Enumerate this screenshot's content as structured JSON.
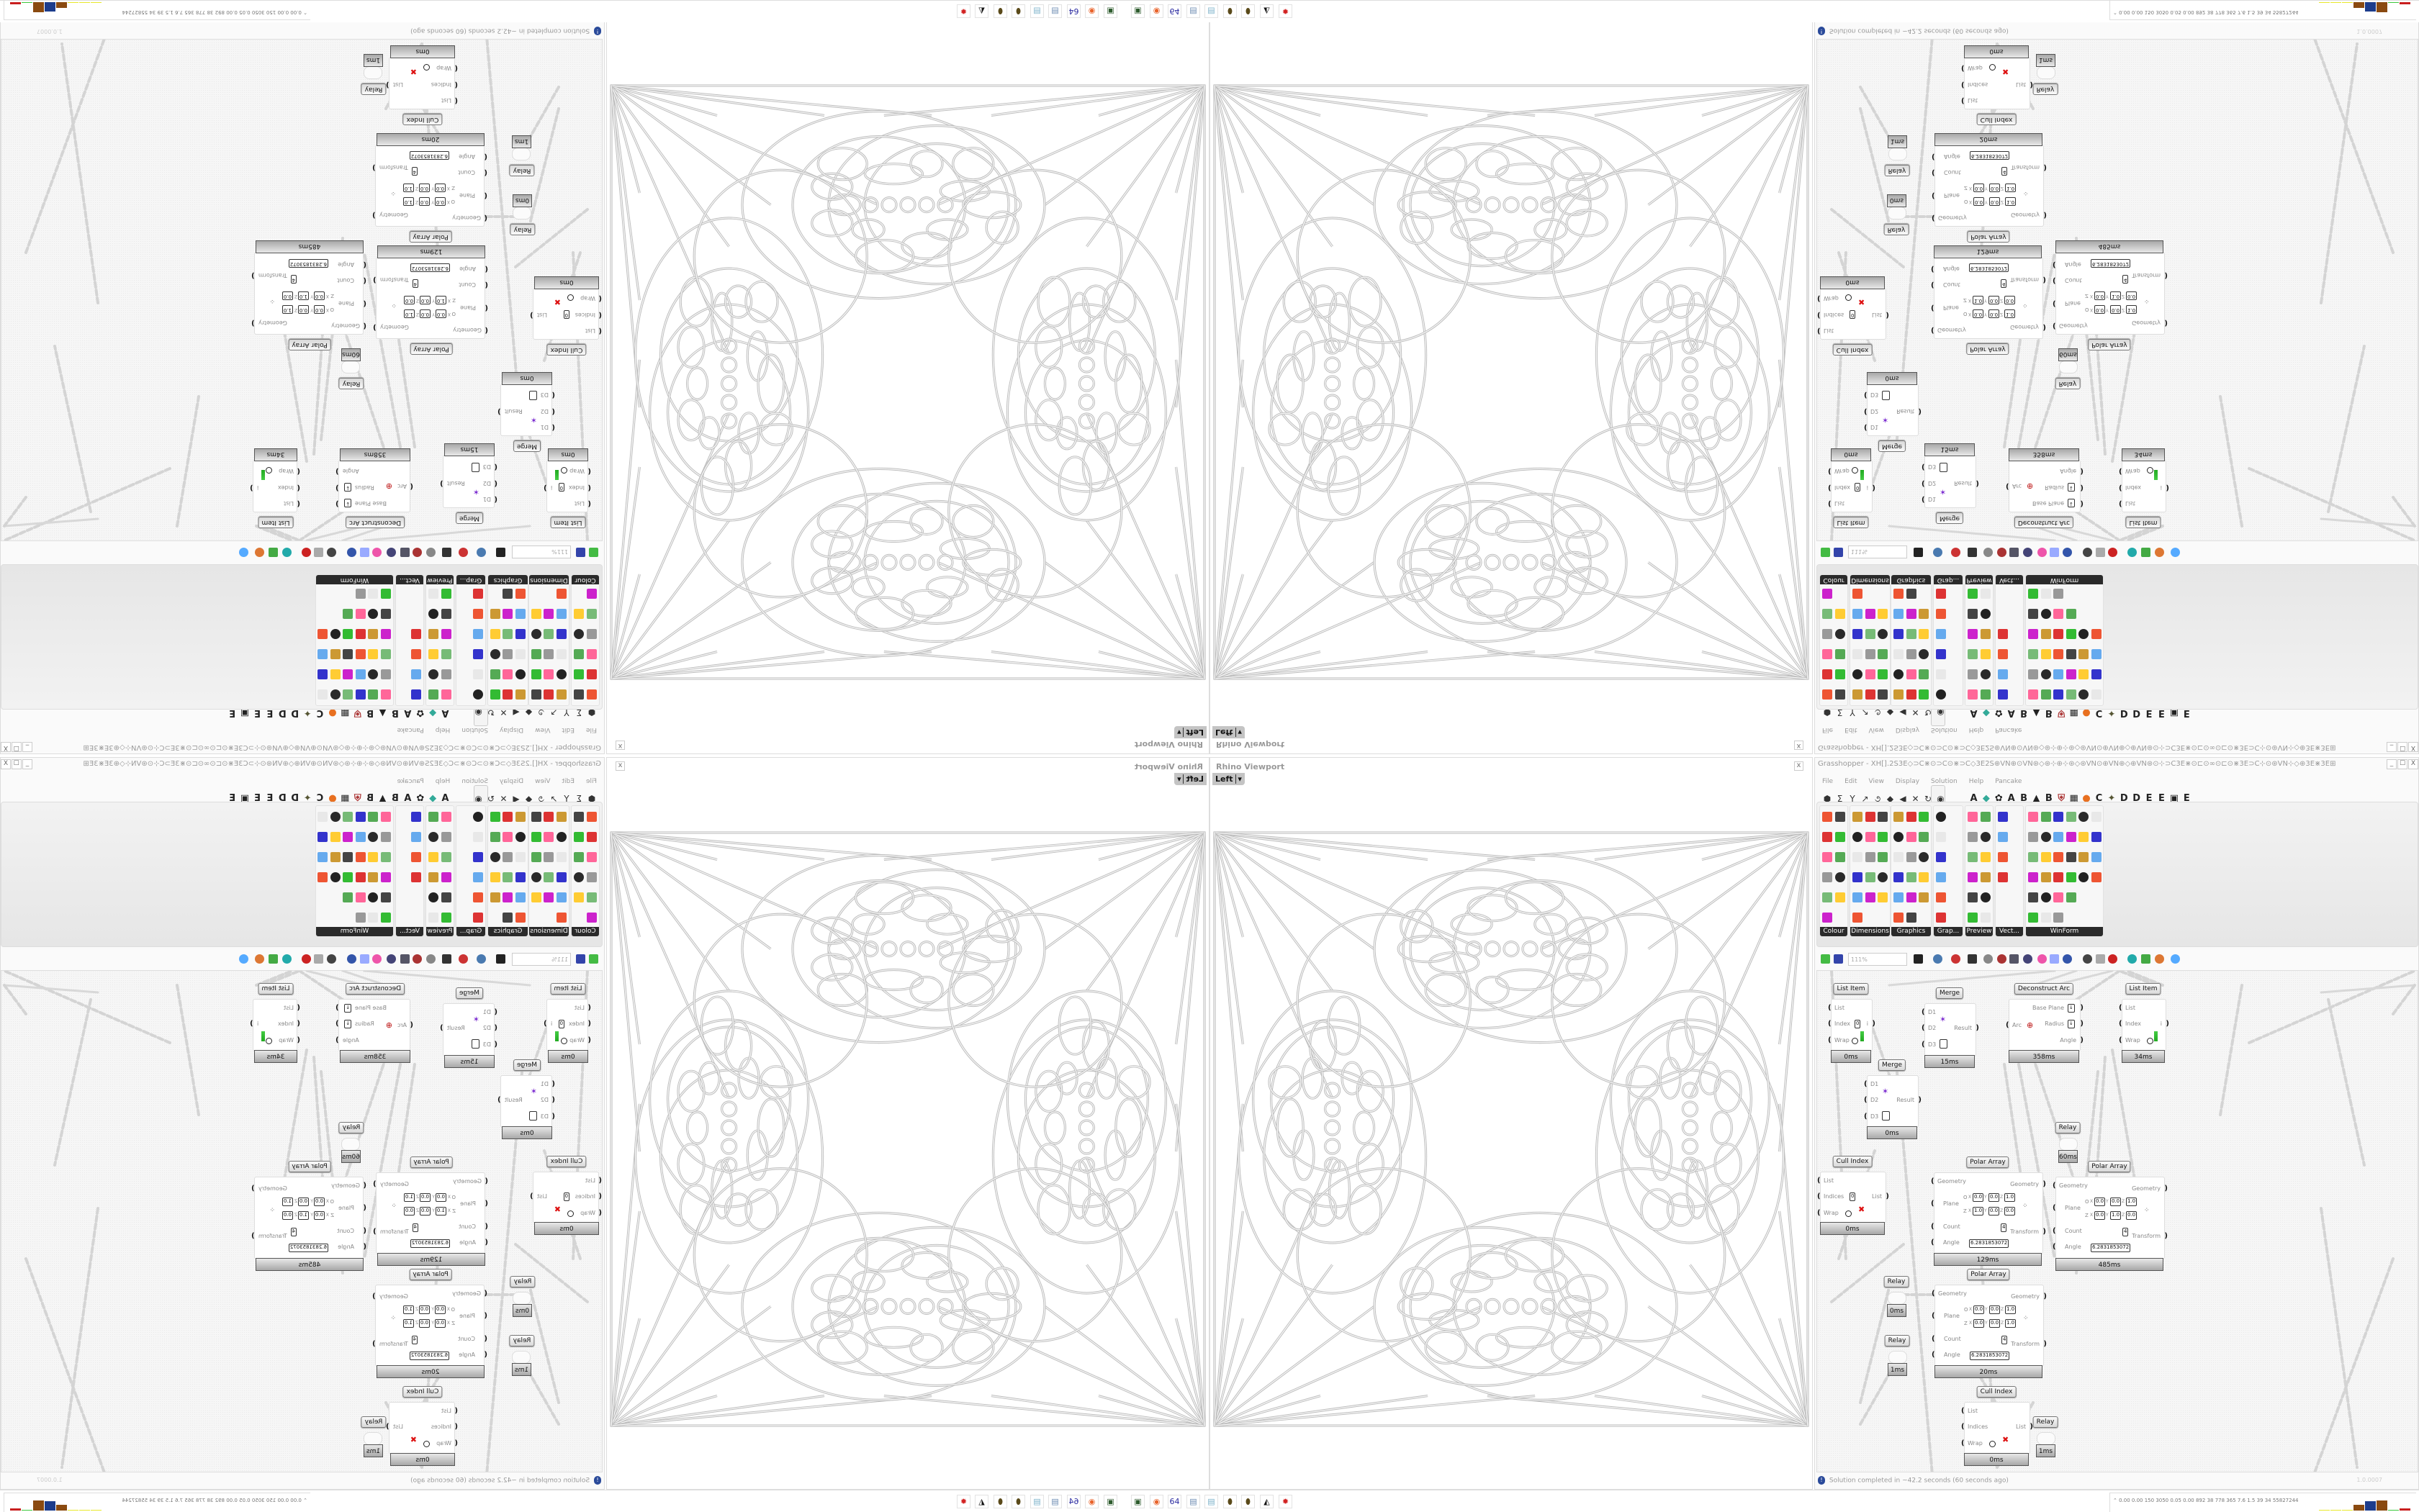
{
  "rhino": {
    "title": "Rhino Viewport",
    "view": "Left",
    "view_arrow": "▾",
    "close": "x"
  },
  "gh": {
    "title": "Grasshopper - XH[].2S3E◇⊃C⋇⊙⊃C⊙⋇⊃C◇3E2S⊕VN⊕⊙VN⊛◇⊛⊹⊕⊹⊛◇⊛VN⊙⊕VN⊕◇⊕VN⊛⊙⊹⊃C3E⋇⊙⊏⊙∞⊙⊏⊙⋇3E⊃C⊹⊙⊛VN⊹◇⊕3E⋇3E⊞⊹2S⊹⊞3E⋇3E⊕◇⊹⋇⊏3E⊞⊹⊹⊃C...",
    "window_buttons": [
      "_",
      "☐",
      "X"
    ],
    "menu": [
      "File",
      "Edit",
      "View",
      "Display",
      "Solution",
      "Help",
      "Pancake"
    ],
    "tab_icons": [
      "hexagon-icon",
      "sigma-icon",
      "vector-icon",
      "arrow-icon",
      "curve-icon",
      "surface-icon",
      "mesh-icon",
      "intersect-icon",
      "transform-icon",
      "display-eye-icon"
    ],
    "tab_icon_glyphs": [
      "⬢",
      "Σ",
      "Y",
      "↗",
      "૭",
      "◆",
      "◀",
      "✕",
      "↻",
      "◉"
    ],
    "tab_letters": [
      "A",
      "◆",
      "✿",
      "A",
      "B",
      "▲",
      "B",
      "⛨",
      "▦",
      "●",
      "C",
      "✦",
      "D",
      "D",
      "E",
      "E",
      "▣",
      "E"
    ],
    "ribbon_panels": [
      "Colour",
      "Dimensions",
      "Graphics",
      "Grap...",
      "Preview",
      "Vect...",
      "WinForm"
    ],
    "zoom": "111%",
    "status": "Solution completed in ~42.2 seconds (60 seconds ago)",
    "status_icon": "!",
    "version": "1.0.0007",
    "nodes": [
      {
        "label": "List Item",
        "inputs": [
          "List",
          "Index",
          "Wrap"
        ],
        "outputs": [
          "i"
        ],
        "index_value": "0",
        "timer": "0ms"
      },
      {
        "label": "Merge",
        "inputs": [
          "D1",
          "D2",
          "D3"
        ],
        "outputs": [
          "Result"
        ],
        "timer": "15ms"
      },
      {
        "label": "Deconstruct Arc",
        "inputs": [
          "Arc"
        ],
        "outputs": [
          "Base Plane",
          "Radius",
          "Angle"
        ],
        "timer": "358ms"
      },
      {
        "label": "List Item",
        "inputs": [
          "List",
          "Index",
          "Wrap"
        ],
        "outputs": [
          "i"
        ],
        "timer": "34ms"
      },
      {
        "label": "Merge",
        "inputs": [
          "D1",
          "D2",
          "D3"
        ],
        "outputs": [
          "Result"
        ],
        "timer": "0ms"
      },
      {
        "label": "Cull Index",
        "inputs": [
          "List",
          "Indices",
          "Wrap"
        ],
        "outputs": [
          "List"
        ],
        "index_value": "0",
        "timer": "0ms"
      },
      {
        "label": "Polar Array",
        "inputs": [
          "Geometry",
          "Plane",
          "Count",
          "Angle"
        ],
        "outputs": [
          "Geometry",
          "Transform"
        ],
        "plane": {
          "o": [
            "0.0",
            "0.0",
            "1.0"
          ],
          "z": [
            "1.0",
            "0.0",
            "0.0"
          ]
        },
        "count": "4",
        "angle": "6.2831853072",
        "timer": "129ms"
      },
      {
        "label": "Polar Array",
        "inputs": [
          "Geometry",
          "Plane",
          "Count",
          "Angle"
        ],
        "outputs": [
          "Geometry",
          "Transform"
        ],
        "plane": {
          "o": [
            "0.0",
            "0.0",
            "1.0"
          ],
          "z": [
            "0.0",
            "1.0",
            "0.0"
          ]
        },
        "count": "4",
        "angle": "6.2831853072",
        "timer": "485ms"
      },
      {
        "label": "Polar Array",
        "inputs": [
          "Geometry",
          "Plane",
          "Count",
          "Angle"
        ],
        "outputs": [
          "Geometry",
          "Transform"
        ],
        "plane": {
          "o": [
            "0.0",
            "0.0",
            "1.0"
          ],
          "z": [
            "0.0",
            "0.0",
            "1.0"
          ]
        },
        "count": "4",
        "angle": "6.2831853072",
        "timer": "20ms"
      },
      {
        "label": "Cull Index",
        "inputs": [
          "List",
          "Indices",
          "Wrap"
        ],
        "outputs": [
          "List"
        ],
        "timer": "0ms"
      }
    ],
    "plane_labels": {
      "o": "O",
      "z": "Z",
      "axes": [
        "X",
        "Y",
        "Z"
      ]
    },
    "relays": [
      {
        "label": "Relay",
        "timer": "60ms"
      },
      {
        "label": "Relay",
        "timer": "0ms"
      },
      {
        "label": "Relay",
        "timer": "1ms"
      },
      {
        "label": "Relay",
        "timer": "1ms"
      }
    ]
  },
  "taskbar": {
    "icons": [
      "terminal-icon",
      "firefox-icon",
      "floppy-64-icon",
      "notepad-blue-icon",
      "notepad-icon",
      "pinecone-icon",
      "pinecone-icon",
      "inkscape-icon",
      "red-app-icon"
    ],
    "icon_glyphs": [
      "▣",
      "◉",
      "64",
      "▤",
      "▤",
      "⬮",
      "⬮",
      "◭",
      "✹"
    ],
    "icon_colors": [
      "#2d5b2d",
      "#e8632b",
      "#2a2aa0",
      "#6a8ab0",
      "#7ab0c8",
      "#5a4a1a",
      "#5a4a1a",
      "#111111",
      "#d22222"
    ],
    "stats_arrow": "⌃",
    "stats": "0.00 0.00 150 3050 0.05 0.00 892  38  778  365  7.6  1.5  39   34  55827244",
    "meter_levels": [
      0.05,
      0.05,
      0.05,
      0.55,
      0.9,
      1.0,
      0.05,
      0.25
    ],
    "meter_colors": [
      "#e8e82a",
      "#e8e82a",
      "#e8e82a",
      "#8a4a10",
      "#1c3c8c",
      "#8a4a10",
      "#3cc83c",
      "#c81e1e"
    ]
  }
}
